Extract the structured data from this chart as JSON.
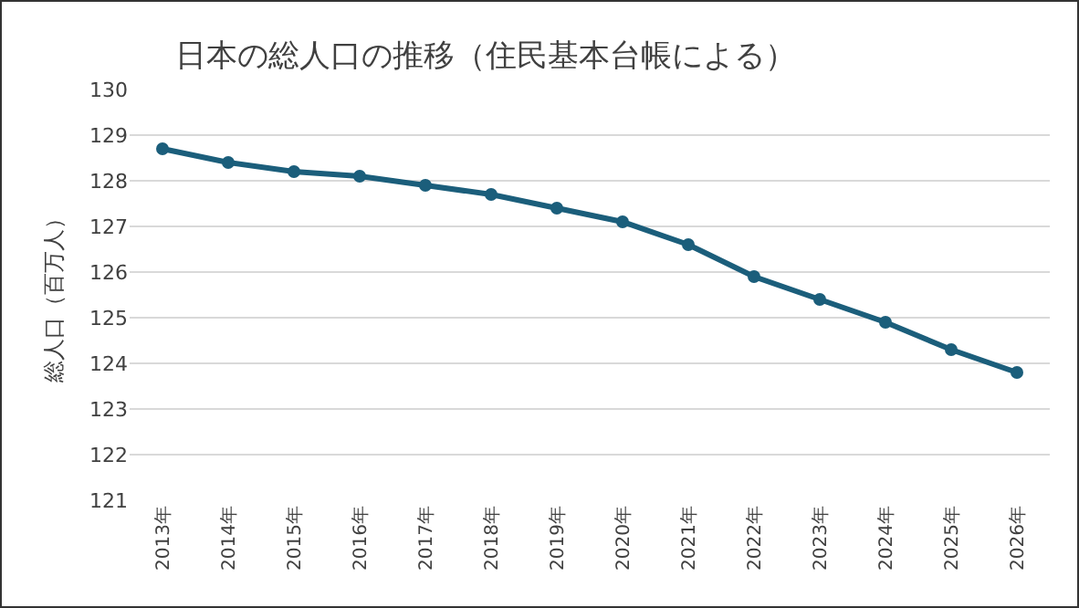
{
  "chart_data": {
    "type": "line",
    "title": "日本の総人口の推移（住民基本台帳による）",
    "ylabel": "総人口（百万人）",
    "categories": [
      "2013年",
      "2014年",
      "2015年",
      "2016年",
      "2017年",
      "2018年",
      "2019年",
      "2020年",
      "2021年",
      "2022年",
      "2023年",
      "2024年",
      "2025年",
      "2026年"
    ],
    "series": [
      {
        "color": "#1b5e7b",
        "values": [
          128.7,
          128.4,
          128.2,
          128.1,
          127.9,
          127.7,
          127.4,
          127.1,
          126.6,
          125.9,
          125.4,
          124.9,
          124.3,
          123.8
        ]
      }
    ],
    "ylim": [
      121,
      130
    ],
    "yticks": [
      121,
      122,
      123,
      124,
      125,
      126,
      127,
      128,
      129,
      130
    ],
    "grid": "y",
    "marker": "circle",
    "line_style": "solid",
    "legend": false
  }
}
